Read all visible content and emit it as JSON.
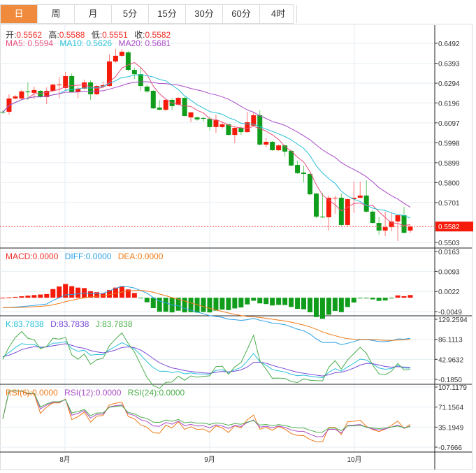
{
  "tabs": [
    "日",
    "周",
    "月",
    "5分",
    "15分",
    "30分",
    "60分",
    "4时"
  ],
  "active_tab": 0,
  "ohlc_legend": {
    "open_label": "开:",
    "open": "0.5562",
    "high_label": "高:",
    "high": "0.5588",
    "low_label": "低:",
    "low": "0.5551",
    "close_label": "收:",
    "close": "0.5582"
  },
  "ma_legend": {
    "ma5": "MA5: 0.5594",
    "ma10": "MA10: 0.5626",
    "ma20": "MA20: 0.5681"
  },
  "macd_legend": {
    "macd": "MACD:0.0000",
    "diff": "DIFF:0.0000",
    "dea": "DEA:0.0000"
  },
  "kdj_legend": {
    "k": "K:83.7838",
    "d": "D:83.7838",
    "j": "J:83.7838"
  },
  "rsi_legend": {
    "rsi6": "RSI(6):0.0000",
    "rsi12": "RSI(12):0.0000",
    "rsi24": "RSI(24):0.0000"
  },
  "colors": {
    "up": "#f51b0b",
    "down": "#0f9d1b",
    "ma5": "#e8507d",
    "ma10": "#29c0d8",
    "ma20": "#a94ac6",
    "active_tab": "#f08a3c"
  },
  "price_axis": [
    "0.6492",
    "0.6393",
    "0.6294",
    "0.6196",
    "0.6097",
    "0.5998",
    "0.5899",
    "0.5800",
    "0.5701",
    "0.5503"
  ],
  "last_price": "0.5582",
  "macd_axis": [
    "0.0163",
    "0.0093",
    "0.0022",
    "-0.0049"
  ],
  "kdj_axis": [
    "129.2594",
    "86.1113",
    "42.9632",
    "-0.1850"
  ],
  "rsi_axis": [
    "107.1179",
    "71.1564",
    "35.1949",
    "-0.7666"
  ],
  "x_labels": [
    "8月",
    "9月",
    "10月"
  ],
  "chart_data": {
    "type": "candlestick",
    "ylim": [
      0.5503,
      0.6492
    ],
    "candles": [
      [
        0.6152,
        0.6159,
        0.6142,
        0.6149
      ],
      [
        0.6152,
        0.6239,
        0.6138,
        0.6218
      ],
      [
        0.6218,
        0.6235,
        0.6214,
        0.6228
      ],
      [
        0.6218,
        0.626,
        0.6214,
        0.6253
      ],
      [
        0.6253,
        0.6298,
        0.6211,
        0.6249
      ],
      [
        0.6246,
        0.6277,
        0.6214,
        0.626
      ],
      [
        0.6256,
        0.626,
        0.6221,
        0.6225
      ],
      [
        0.6225,
        0.6273,
        0.619,
        0.6256
      ],
      [
        0.6256,
        0.6291,
        0.6253,
        0.6287
      ],
      [
        0.6284,
        0.6325,
        0.6218,
        0.6287
      ],
      [
        0.627,
        0.635,
        0.6256,
        0.6329
      ],
      [
        0.6329,
        0.6343,
        0.6249,
        0.6249
      ],
      [
        0.6249,
        0.6277,
        0.6218,
        0.6267
      ],
      [
        0.6267,
        0.6312,
        0.6263,
        0.6298
      ],
      [
        0.6298,
        0.6308,
        0.6211,
        0.6239
      ],
      [
        0.6239,
        0.6284,
        0.6235,
        0.628
      ],
      [
        0.6277,
        0.6301,
        0.627,
        0.6284
      ],
      [
        0.628,
        0.6437,
        0.6277,
        0.6402
      ],
      [
        0.6402,
        0.6464,
        0.6395,
        0.643
      ],
      [
        0.643,
        0.6464,
        0.6423,
        0.645
      ],
      [
        0.6447,
        0.6454,
        0.6353,
        0.636
      ],
      [
        0.636,
        0.6371,
        0.6315,
        0.6339
      ],
      [
        0.6339,
        0.6374,
        0.6256,
        0.628
      ],
      [
        0.6277,
        0.6287,
        0.6246,
        0.6253
      ],
      [
        0.6256,
        0.626,
        0.6166,
        0.6169
      ],
      [
        0.6173,
        0.6211,
        0.6159,
        0.6162
      ],
      [
        0.6162,
        0.6214,
        0.6155,
        0.6211
      ],
      [
        0.6211,
        0.6218,
        0.6162,
        0.618
      ],
      [
        0.6187,
        0.6225,
        0.6183,
        0.6221
      ],
      [
        0.6221,
        0.6225,
        0.6128,
        0.6131
      ],
      [
        0.6124,
        0.6152,
        0.61,
        0.6149
      ],
      [
        0.6124,
        0.6128,
        0.6107,
        0.6114
      ],
      [
        0.6121,
        0.6128,
        0.6103,
        0.6117
      ],
      [
        0.6117,
        0.6128,
        0.6058,
        0.6076
      ],
      [
        0.6076,
        0.6138,
        0.6048,
        0.611
      ],
      [
        0.6076,
        0.61,
        0.6069,
        0.609
      ],
      [
        0.609,
        0.6093,
        0.6034,
        0.6037
      ],
      [
        0.6037,
        0.6076,
        0.5996,
        0.6072
      ],
      [
        0.6072,
        0.6079,
        0.6037,
        0.6051
      ],
      [
        0.6051,
        0.6152,
        0.6048,
        0.61
      ],
      [
        0.6083,
        0.6152,
        0.6079,
        0.6135
      ],
      [
        0.6135,
        0.6159,
        0.5985,
        0.5989
      ],
      [
        0.5989,
        0.6024,
        0.5975,
        0.6003
      ],
      [
        0.6003,
        0.6006,
        0.5958,
        0.5961
      ],
      [
        0.5961,
        0.5989,
        0.5958,
        0.5985
      ],
      [
        0.5985,
        0.5989,
        0.593,
        0.5954
      ],
      [
        0.5958,
        0.5961,
        0.5881,
        0.5885
      ],
      [
        0.5888,
        0.5909,
        0.5843,
        0.5847
      ],
      [
        0.585,
        0.5885,
        0.5801,
        0.5843
      ],
      [
        0.5843,
        0.5847,
        0.5735,
        0.5742
      ],
      [
        0.5746,
        0.575,
        0.5624,
        0.5631
      ],
      [
        0.5631,
        0.5749,
        0.5624,
        0.5628
      ],
      [
        0.5628,
        0.5736,
        0.5562,
        0.5725
      ],
      [
        0.5722,
        0.5736,
        0.5645,
        0.5725
      ],
      [
        0.5725,
        0.5746,
        0.5586,
        0.559
      ],
      [
        0.559,
        0.5722,
        0.5586,
        0.5718
      ],
      [
        0.5718,
        0.5805,
        0.5649,
        0.5725
      ],
      [
        0.5725,
        0.5805,
        0.5722,
        0.5736
      ],
      [
        0.5736,
        0.5812,
        0.5652,
        0.5656
      ],
      [
        0.5656,
        0.5666,
        0.5597,
        0.56
      ],
      [
        0.56,
        0.5628,
        0.5541,
        0.5562
      ],
      [
        0.5562,
        0.5656,
        0.5534,
        0.5579
      ],
      [
        0.5579,
        0.5649,
        0.5558,
        0.5607
      ],
      [
        0.5607,
        0.5642,
        0.551,
        0.5638
      ],
      [
        0.5638,
        0.568,
        0.5548,
        0.5551
      ],
      [
        0.5562,
        0.5588,
        0.5551,
        0.5582
      ]
    ],
    "macd_range": [
      -0.0049,
      0.0163
    ],
    "kdj_range": [
      -0.185,
      129.2594
    ],
    "rsi_range": [
      -0.7666,
      107.1179
    ]
  }
}
